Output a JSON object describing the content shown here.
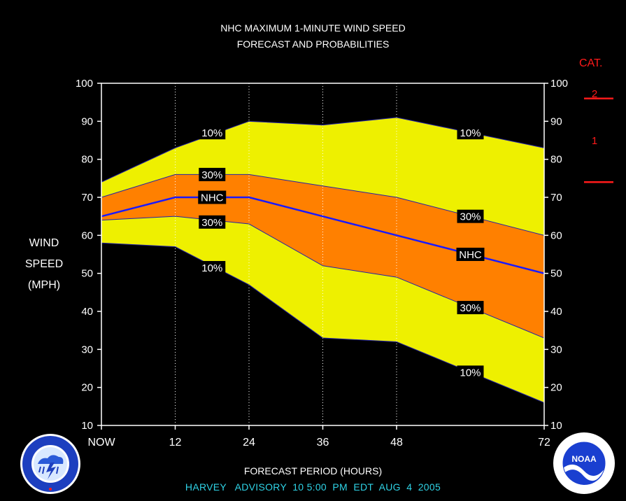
{
  "header": {
    "title_line1": "NHC MAXIMUM 1-MINUTE WIND SPEED",
    "title_line2": "FORECAST AND PROBABILITIES"
  },
  "category": {
    "title": "CAT.",
    "labels": [
      "2",
      "1"
    ]
  },
  "y_axis_label": [
    "WIND",
    "SPEED",
    "(MPH)"
  ],
  "x_axis_label": "FORECAST PERIOD (HOURS)",
  "advisory": "HARVEY   ADVISORY  10 5:00  PM  EDT  AUG  4  2005",
  "colors": {
    "band_10": "#eef000",
    "band_30": "#ff8000",
    "nhc_line": "#1a1aff",
    "category_red": "#ff1a1a",
    "advisory_cyan": "#2fd3e6"
  },
  "logos": {
    "left": "nws-logo",
    "right": "noaa-logo"
  },
  "chart_data": {
    "type": "area",
    "title": "NHC MAXIMUM 1-MINUTE WIND SPEED FORECAST AND PROBABILITIES",
    "xlabel": "FORECAST PERIOD (HOURS)",
    "ylabel": "WIND SPEED (MPH)",
    "xlim": [
      0,
      72
    ],
    "ylim": [
      10,
      100
    ],
    "x_ticks": [
      0,
      12,
      24,
      36,
      48,
      72
    ],
    "x_tick_labels": [
      "NOW",
      "12",
      "24",
      "36",
      "48",
      "72"
    ],
    "y_ticks": [
      10,
      20,
      30,
      40,
      50,
      60,
      70,
      80,
      90,
      100
    ],
    "dotted_gridlines_x": [
      12,
      24,
      36,
      48
    ],
    "x": [
      0,
      12,
      24,
      36,
      48,
      72
    ],
    "series": [
      {
        "name": "10%",
        "role": "upper",
        "values": [
          74,
          83,
          90,
          89,
          91,
          83
        ]
      },
      {
        "name": "30%",
        "role": "upper",
        "values": [
          70,
          76,
          76,
          73,
          70,
          60
        ]
      },
      {
        "name": "NHC",
        "role": "forecast",
        "values": [
          65,
          70,
          70,
          65,
          60,
          50
        ]
      },
      {
        "name": "30%",
        "role": "lower",
        "values": [
          64,
          65,
          63,
          52,
          49,
          33
        ]
      },
      {
        "name": "10%",
        "role": "lower",
        "values": [
          58,
          57,
          47,
          33,
          32,
          16
        ]
      }
    ],
    "annotations": [
      {
        "text": "10%",
        "x": 18,
        "y": 87
      },
      {
        "text": "30%",
        "x": 18,
        "y": 76
      },
      {
        "text": "NHC",
        "x": 18,
        "y": 70
      },
      {
        "text": "30%",
        "x": 18,
        "y": 63.5
      },
      {
        "text": "10%",
        "x": 18,
        "y": 51.5
      },
      {
        "text": "10%",
        "x": 60,
        "y": 87
      },
      {
        "text": "30%",
        "x": 60,
        "y": 65
      },
      {
        "text": "NHC",
        "x": 60,
        "y": 55
      },
      {
        "text": "30%",
        "x": 60,
        "y": 41
      },
      {
        "text": "10%",
        "x": 60,
        "y": 24
      }
    ],
    "category_thresholds": [
      {
        "value": 96,
        "label_between": "2"
      },
      {
        "value": 74,
        "label_between": "1"
      }
    ]
  }
}
